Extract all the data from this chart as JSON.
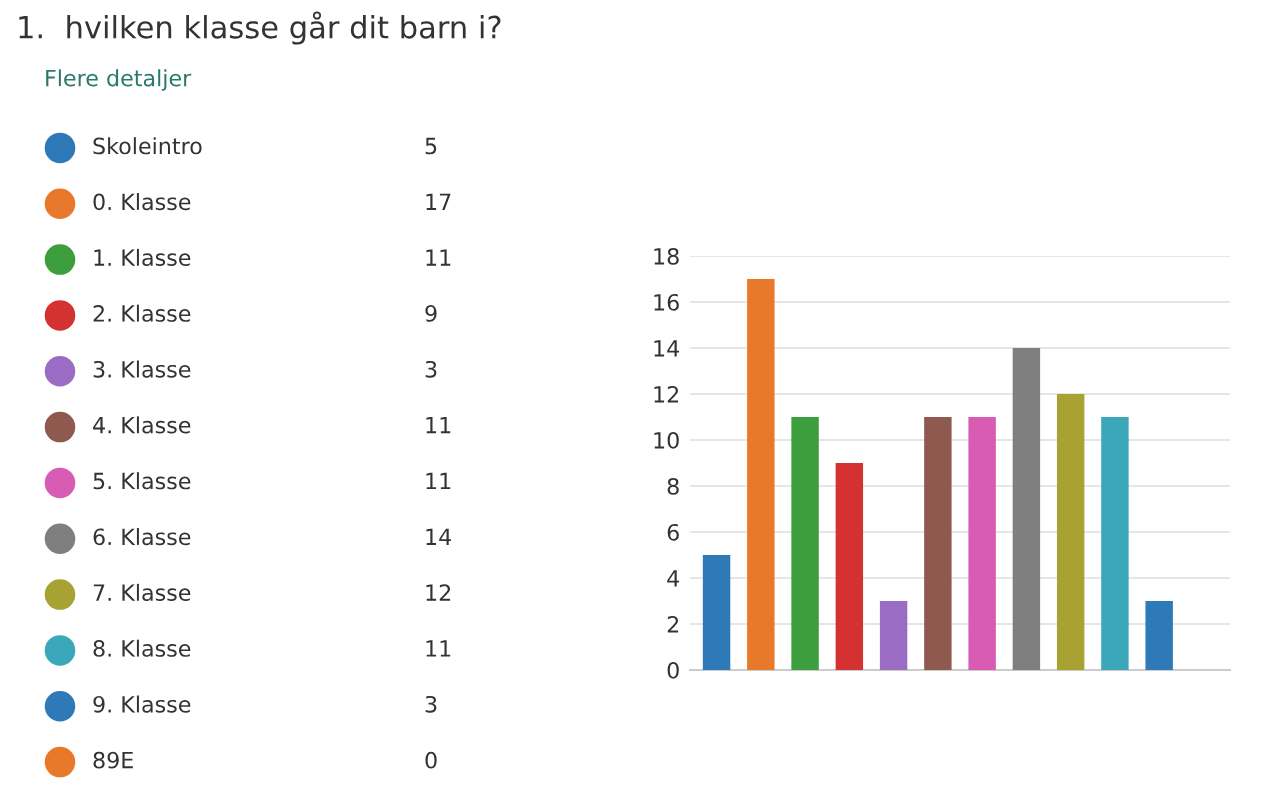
{
  "chart_data": [
    {
      "type": "other",
      "title": "1.  hvilken klasse går dit barn i?",
      "annotations": [
        "Flere detaljer"
      ],
      "categories": [
        "Skoleintro",
        "0. Klasse",
        "1. Klasse",
        "2. Klasse",
        "3. Klasse",
        "4. Klasse",
        "5. Klasse",
        "6. Klasse",
        "7. Klasse",
        "8. Klasse",
        "9. Klasse",
        "89E"
      ],
      "values": [
        5,
        17,
        11,
        9,
        3,
        11,
        11,
        14,
        12,
        11,
        3,
        0
      ],
      "colors": [
        "#2e7ab8",
        "#e8782a",
        "#3c9e3c",
        "#d43232",
        "#9a6cc4",
        "#8e5a50",
        "#d85cb4",
        "#7f7f7f",
        "#a8a232",
        "#3aa8b8",
        "#2e7ab8",
        "#e8782a"
      ],
      "data_labels": true
    },
    {
      "type": "bar",
      "categories": [
        null,
        null,
        null,
        null,
        null,
        null,
        null,
        null,
        null,
        null,
        null,
        null
      ],
      "values": [
        5,
        17,
        11,
        9,
        3,
        11,
        11,
        14,
        12,
        11,
        3,
        0
      ],
      "colors": [
        "#2e7ab8",
        "#e8782a",
        "#3c9e3c",
        "#d43232",
        "#9a6cc4",
        "#8e5a50",
        "#d85cb4",
        "#7f7f7f",
        "#a8a232",
        "#3aa8b8",
        "#2e7ab8",
        "#e8782a"
      ],
      "ylim": [
        0,
        18
      ],
      "yticks": [
        0,
        2,
        4,
        6,
        8,
        10,
        12,
        14,
        16,
        18
      ],
      "grid": "y"
    }
  ]
}
